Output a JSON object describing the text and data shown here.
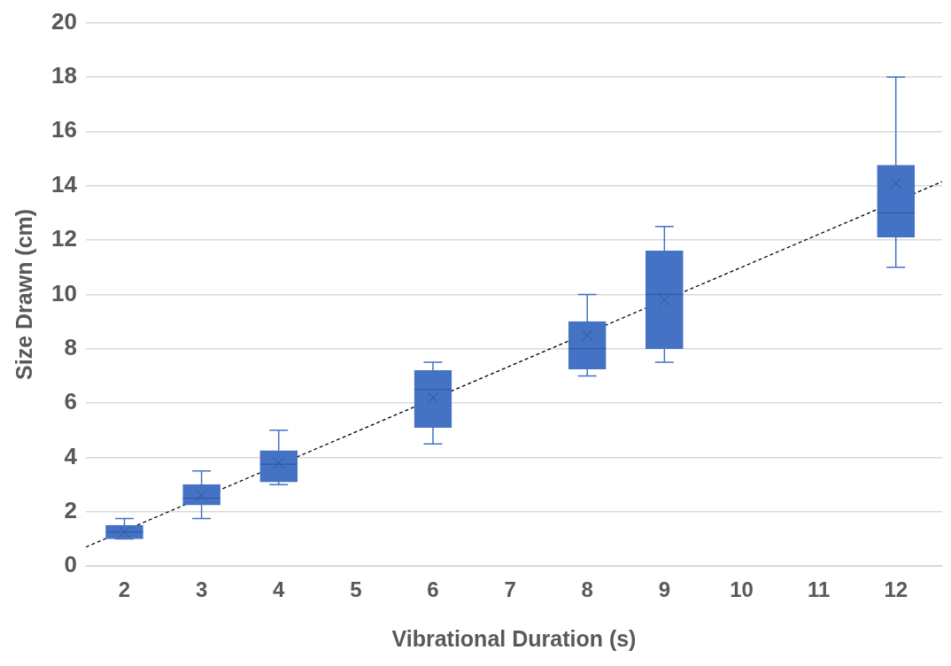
{
  "chart_data": {
    "type": "box",
    "xlabel": "Vibrational Duration (s)",
    "ylabel": "Size Drawn (cm)",
    "xlim": [
      1.5,
      12.6
    ],
    "xticks": [
      2,
      3,
      4,
      5,
      6,
      7,
      8,
      9,
      10,
      11,
      12
    ],
    "ylim": [
      0,
      20
    ],
    "yticks": [
      0,
      2,
      4,
      6,
      8,
      10,
      12,
      14,
      16,
      18,
      20
    ],
    "grid": "y",
    "legend": false,
    "series": [
      {
        "type": "box",
        "color": "#4472c4",
        "x": [
          2,
          3,
          4,
          6,
          8,
          9,
          12
        ],
        "boxes": [
          {
            "low": 1.0,
            "q1": 1.0,
            "median": 1.25,
            "q3": 1.5,
            "high": 1.75,
            "mean": 1.25
          },
          {
            "low": 1.75,
            "q1": 2.25,
            "median": 2.5,
            "q3": 3.0,
            "high": 3.5,
            "mean": 2.6
          },
          {
            "low": 3.0,
            "q1": 3.1,
            "median": 3.75,
            "q3": 4.25,
            "high": 5.0,
            "mean": 3.8
          },
          {
            "low": 4.5,
            "q1": 5.1,
            "median": 6.5,
            "q3": 7.2,
            "high": 7.5,
            "mean": 6.2
          },
          {
            "low": 7.0,
            "q1": 7.25,
            "median": 8.0,
            "q3": 9.0,
            "high": 10.0,
            "mean": 8.5
          },
          {
            "low": 7.5,
            "q1": 8.0,
            "median": 10.0,
            "q3": 11.6,
            "high": 12.5,
            "mean": 9.8
          },
          {
            "low": 11.0,
            "q1": 12.1,
            "median": 13.0,
            "q3": 14.75,
            "high": 18.0,
            "mean": 14.1
          }
        ]
      },
      {
        "type": "line",
        "color": "#000000",
        "line_style": "dashed",
        "marker": "none",
        "x": [
          1.5,
          12.6
        ],
        "values": [
          0.7,
          14.15
        ]
      }
    ]
  }
}
